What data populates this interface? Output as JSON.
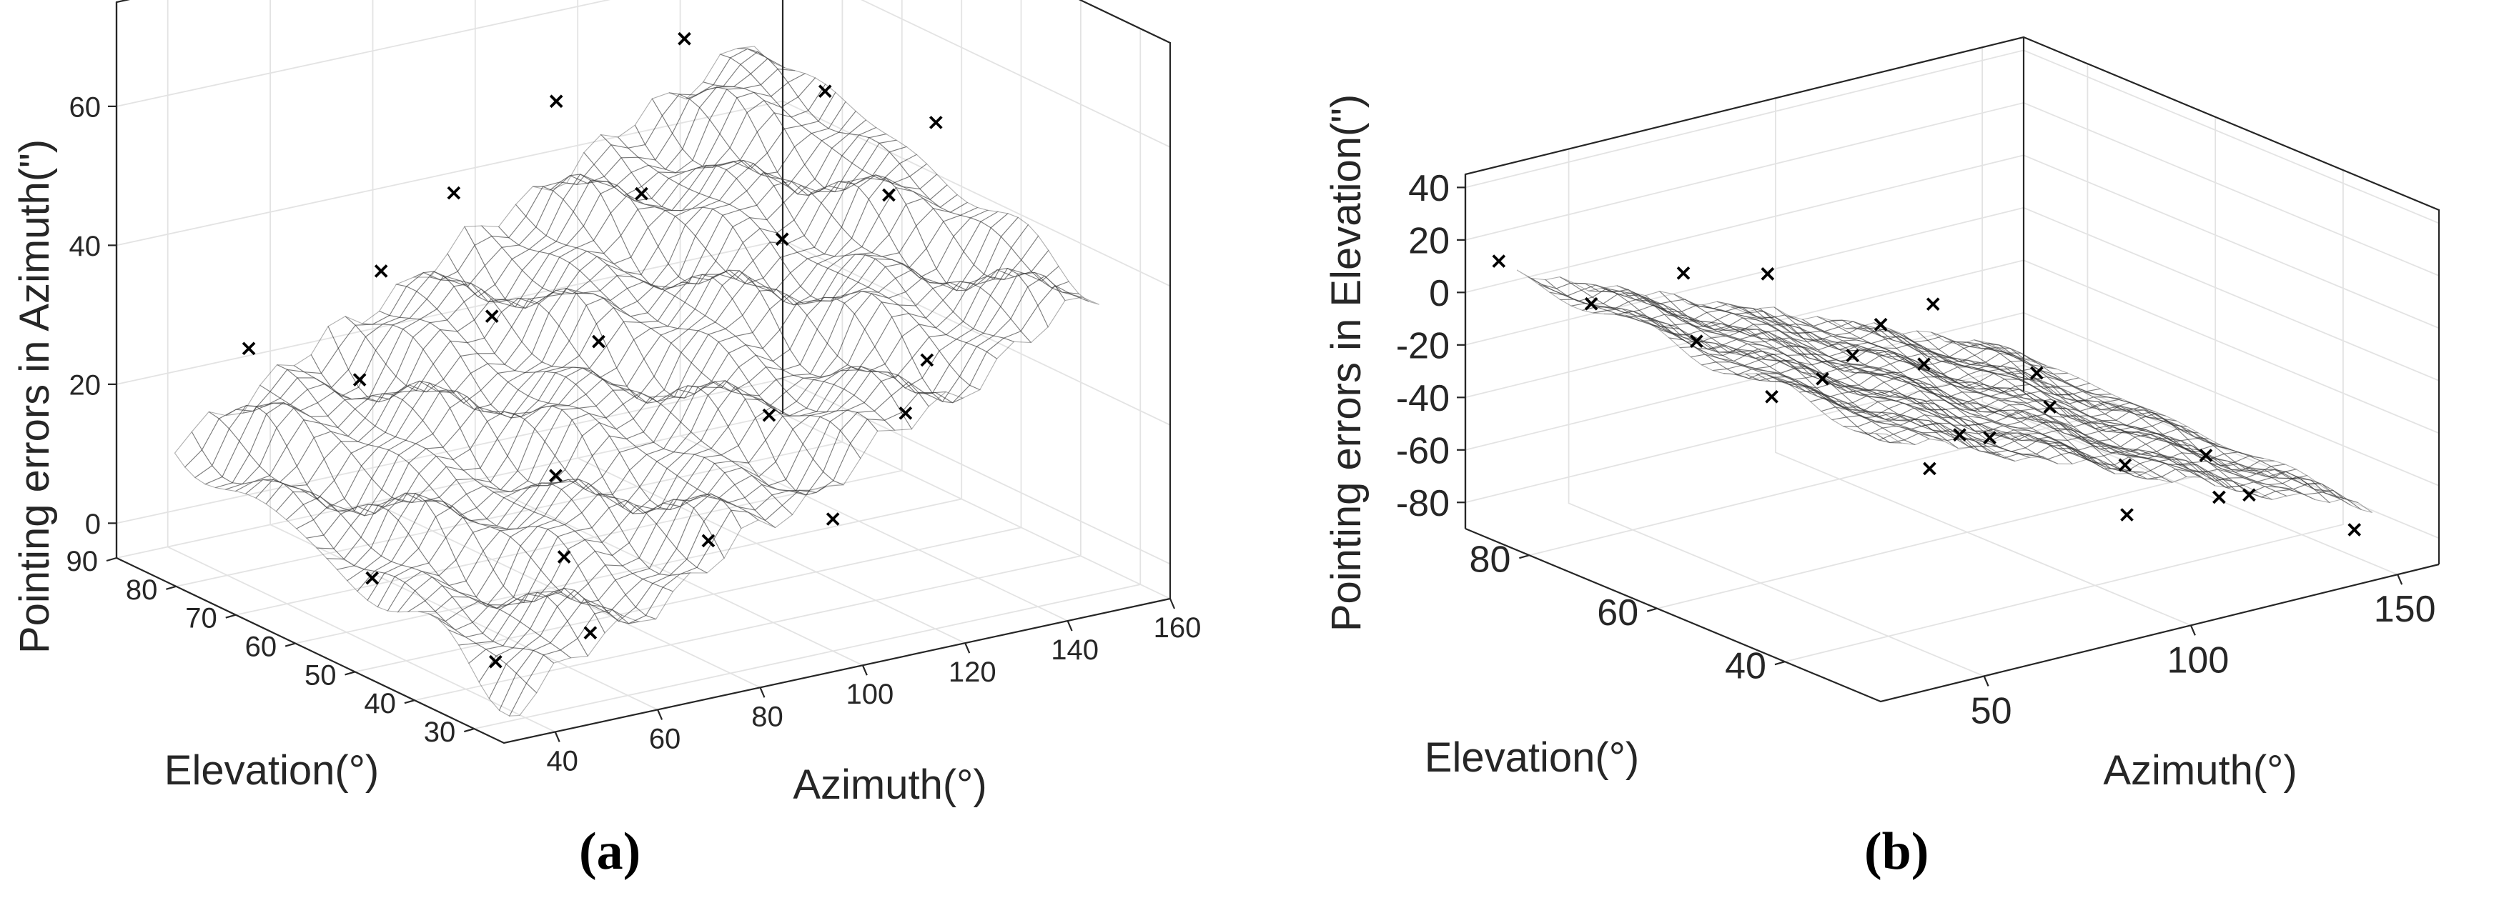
{
  "chart_data": [
    {
      "type": "surface3d",
      "panel_label": "(a)",
      "zlabel": "Pointing errors in Azimuth(\")",
      "xlabel": "Azimuth(°)",
      "ylabel": "Elevation(°)",
      "xlim": [
        30,
        160
      ],
      "ylim": [
        25,
        90
      ],
      "zlim": [
        -5,
        75
      ],
      "x_ticks": [
        40,
        60,
        80,
        100,
        120,
        140,
        160
      ],
      "y_ticks": [
        30,
        40,
        50,
        60,
        70,
        80,
        90
      ],
      "z_ticks": [
        0,
        20,
        40,
        60
      ],
      "colormap": "parula",
      "colormap_stops": [
        "#3e26a8",
        "#4353eb",
        "#2b8df1",
        "#1bb0cf",
        "#30c29a",
        "#8fcb5b",
        "#e0bf3d",
        "#f9e81f"
      ],
      "surface_model": {
        "z0": -2,
        "az_coef": 0.36,
        "el_coef": 0.22,
        "az_ref": 40,
        "el_ref": 30
      },
      "scatter_points": [
        {
          "az": 40,
          "el": 35,
          "z": 1
        },
        {
          "az": 45,
          "el": 60,
          "z": 2
        },
        {
          "az": 55,
          "el": 32,
          "z": 4
        },
        {
          "az": 65,
          "el": 45,
          "z": 8
        },
        {
          "az": 75,
          "el": 55,
          "z": 14
        },
        {
          "az": 85,
          "el": 38,
          "z": 10
        },
        {
          "az": 95,
          "el": 65,
          "z": 26
        },
        {
          "az": 105,
          "el": 45,
          "z": 22
        },
        {
          "az": 115,
          "el": 75,
          "z": 40
        },
        {
          "az": 125,
          "el": 60,
          "z": 38
        },
        {
          "az": 135,
          "el": 85,
          "z": 55
        },
        {
          "az": 145,
          "el": 70,
          "z": 52
        },
        {
          "az": 150,
          "el": 88,
          "z": 72
        },
        {
          "az": 70,
          "el": 80,
          "z": 34
        },
        {
          "az": 80,
          "el": 70,
          "z": 30
        },
        {
          "az": 110,
          "el": 85,
          "z": 50
        },
        {
          "az": 130,
          "el": 40,
          "z": 28
        },
        {
          "az": 140,
          "el": 55,
          "z": 44
        },
        {
          "az": 90,
          "el": 85,
          "z": 40
        },
        {
          "az": 60,
          "el": 75,
          "z": 22
        },
        {
          "az": 100,
          "el": 30,
          "z": 14
        },
        {
          "az": 120,
          "el": 35,
          "z": 24
        },
        {
          "az": 155,
          "el": 60,
          "z": 50
        },
        {
          "az": 50,
          "el": 85,
          "z": 24
        }
      ]
    },
    {
      "type": "surface3d",
      "panel_label": "(b)",
      "zlabel": "Pointing errors in Elevation(\")",
      "xlabel": "Azimuth(°)",
      "ylabel": "Elevation(°)",
      "xlim": [
        25,
        160
      ],
      "ylim": [
        25,
        90
      ],
      "zlim": [
        -90,
        45
      ],
      "x_ticks": [
        50,
        100,
        150
      ],
      "y_ticks": [
        40,
        60,
        80
      ],
      "z_ticks": [
        40,
        20,
        0,
        -20,
        -40,
        -60,
        -80
      ],
      "colormap": "parula",
      "colormap_stops": [
        "#3e26a8",
        "#4353eb",
        "#2b8df1",
        "#1bb0cf",
        "#30c29a",
        "#8fcb5b",
        "#e0bf3d",
        "#f9e81f"
      ],
      "surface_model": {
        "z0": 5,
        "az_coef": -0.62,
        "el_coef": 0.05,
        "az_ref": 30,
        "el_ref": 30
      },
      "scatter_points": [
        {
          "az": 30,
          "el": 88,
          "z": 12
        },
        {
          "az": 40,
          "el": 80,
          "z": 0
        },
        {
          "az": 50,
          "el": 70,
          "z": -8
        },
        {
          "az": 45,
          "el": 55,
          "z": -12
        },
        {
          "az": 60,
          "el": 40,
          "z": -30
        },
        {
          "az": 70,
          "el": 85,
          "z": -5
        },
        {
          "az": 80,
          "el": 65,
          "z": -20
        },
        {
          "az": 90,
          "el": 50,
          "z": -40
        },
        {
          "az": 100,
          "el": 35,
          "z": -58
        },
        {
          "az": 110,
          "el": 80,
          "z": -35
        },
        {
          "az": 120,
          "el": 60,
          "z": -50
        },
        {
          "az": 130,
          "el": 40,
          "z": -68
        },
        {
          "az": 140,
          "el": 75,
          "z": -60
        },
        {
          "az": 150,
          "el": 55,
          "z": -75
        },
        {
          "az": 155,
          "el": 35,
          "z": -85
        },
        {
          "az": 95,
          "el": 88,
          "z": -18
        },
        {
          "az": 115,
          "el": 45,
          "z": -55
        },
        {
          "az": 75,
          "el": 45,
          "z": -28
        },
        {
          "az": 135,
          "el": 88,
          "z": -45
        },
        {
          "az": 105,
          "el": 70,
          "z": -38
        },
        {
          "az": 65,
          "el": 60,
          "z": -18
        },
        {
          "az": 145,
          "el": 45,
          "z": -78
        }
      ]
    }
  ]
}
